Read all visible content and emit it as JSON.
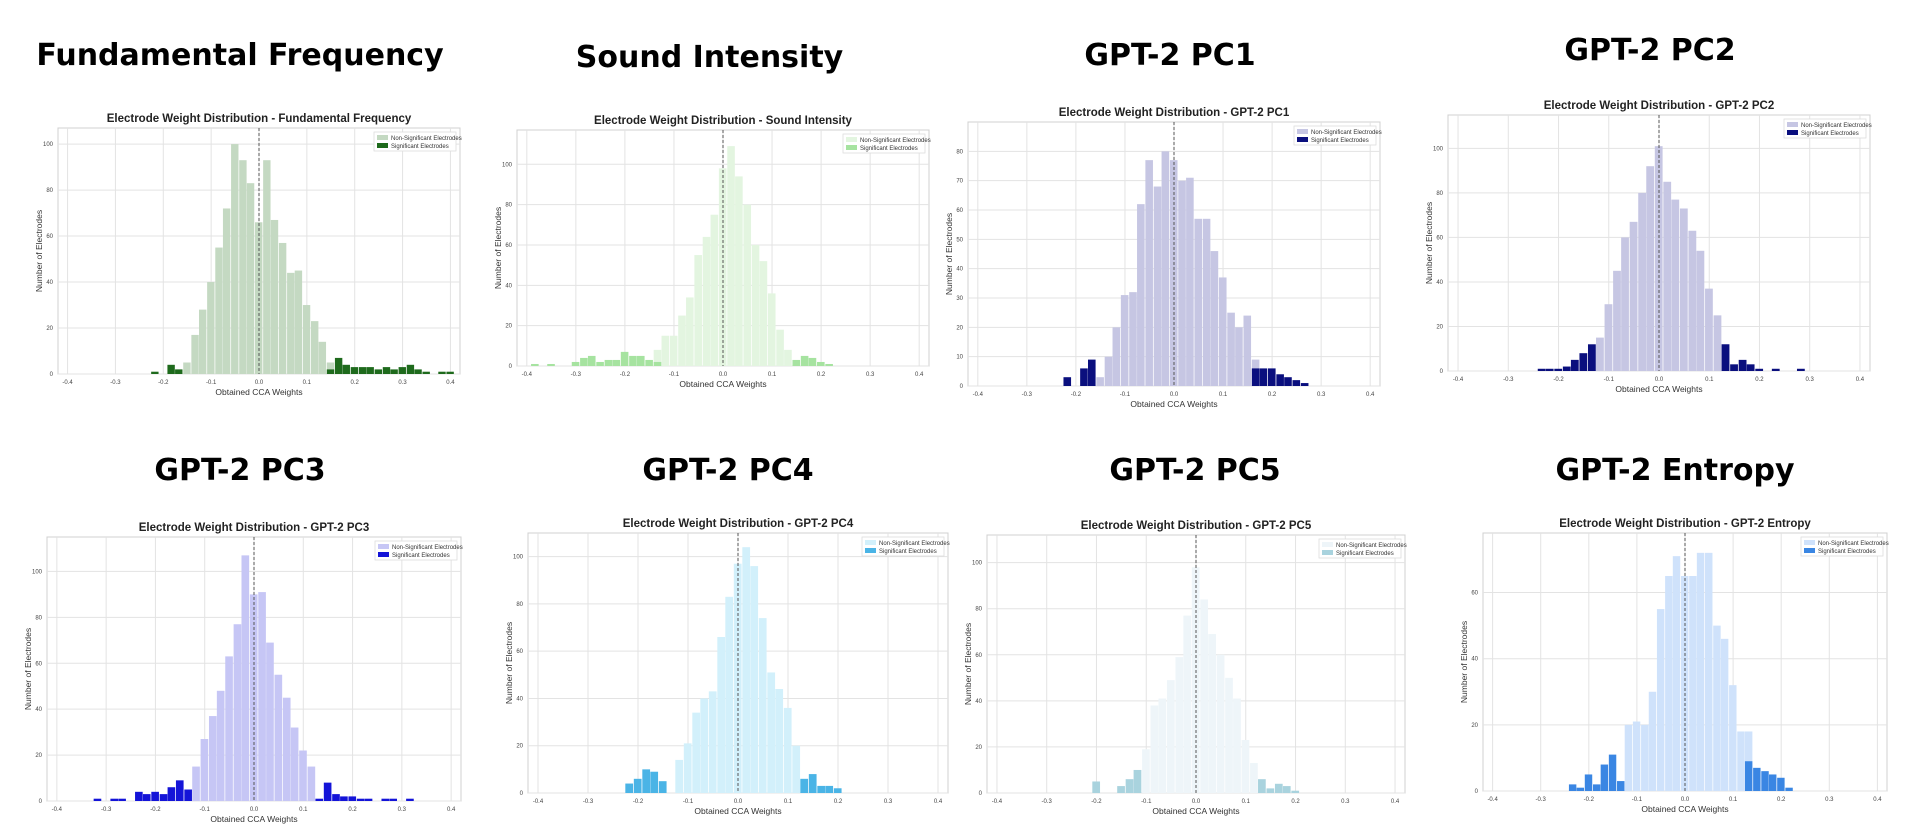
{
  "panels": [
    {
      "heading": "Fundamental Frequency",
      "nonsig_color": "#c4d9c2",
      "sig_color": "#1e6a1c"
    },
    {
      "heading": "Sound Intensity",
      "nonsig_color": "#e3f5e0",
      "sig_color": "#a6e3a0"
    },
    {
      "heading": "GPT-2 PC1",
      "nonsig_color": "#c6c6e3",
      "sig_color": "#0a0f7e"
    },
    {
      "heading": "GPT-2 PC2",
      "nonsig_color": "#c6c6e3",
      "sig_color": "#0a0f7e"
    },
    {
      "heading": "GPT-2 PC3",
      "nonsig_color": "#c6c6f5",
      "sig_color": "#1414d8"
    },
    {
      "heading": "GPT-2 PC4",
      "nonsig_color": "#d2f0fb",
      "sig_color": "#4ab4e6"
    },
    {
      "heading": "GPT-2 PC5",
      "nonsig_color": "#eef5f9",
      "sig_color": "#a9d3de"
    },
    {
      "heading": "GPT-2 Entropy",
      "nonsig_color": "#cfe2fb",
      "sig_color": "#3a86e3"
    }
  ],
  "legend": {
    "nonsig": "Non-Significant Electrodes",
    "sig": "Significant Electrodes"
  },
  "chart_data": [
    {
      "type": "bar",
      "title": "Electrode Weight Distribution - Fundamental Frequency",
      "xlabel": "Obtained CCA Weights",
      "ylabel": "Number of Electrodes",
      "xlim": [
        -0.42,
        0.42
      ],
      "ylim": [
        0,
        107
      ],
      "xticks": [
        -0.4,
        -0.3,
        -0.2,
        -0.1,
        0.0,
        0.1,
        0.2,
        0.3,
        0.4
      ],
      "yticks": [
        0,
        20,
        40,
        60,
        80,
        100
      ],
      "bin_width": 0.0167,
      "nonsig": [
        [
          -0.167,
          2
        ],
        [
          -0.15,
          5
        ],
        [
          -0.133,
          17
        ],
        [
          -0.117,
          28
        ],
        [
          -0.1,
          40
        ],
        [
          -0.083,
          55
        ],
        [
          -0.067,
          72
        ],
        [
          -0.05,
          100
        ],
        [
          -0.033,
          93
        ],
        [
          -0.017,
          83
        ],
        [
          0.0,
          66
        ],
        [
          0.017,
          93
        ],
        [
          0.033,
          67
        ],
        [
          0.05,
          57
        ],
        [
          0.067,
          44
        ],
        [
          0.083,
          45
        ],
        [
          0.1,
          30
        ],
        [
          0.117,
          23
        ],
        [
          0.133,
          14
        ],
        [
          0.15,
          5
        ]
      ],
      "sig": [
        [
          -0.217,
          1
        ],
        [
          -0.183,
          4
        ],
        [
          -0.167,
          2
        ],
        [
          0.15,
          2
        ],
        [
          0.167,
          7
        ],
        [
          0.183,
          4
        ],
        [
          0.2,
          3
        ],
        [
          0.217,
          3
        ],
        [
          0.233,
          3
        ],
        [
          0.25,
          2
        ],
        [
          0.267,
          3
        ],
        [
          0.283,
          2
        ],
        [
          0.3,
          3
        ],
        [
          0.317,
          4
        ],
        [
          0.333,
          2
        ],
        [
          0.35,
          1
        ],
        [
          0.383,
          1
        ],
        [
          0.4,
          1
        ]
      ]
    },
    {
      "type": "bar",
      "title": "Electrode Weight Distribution - Sound Intensity",
      "xlabel": "Obtained CCA Weights",
      "ylabel": "Number of Electrodes",
      "xlim": [
        -0.42,
        0.42
      ],
      "ylim": [
        0,
        117
      ],
      "xticks": [
        -0.4,
        -0.3,
        -0.2,
        -0.1,
        0.0,
        0.1,
        0.2,
        0.3,
        0.4
      ],
      "yticks": [
        0,
        20,
        40,
        60,
        80,
        100
      ],
      "bin_width": 0.0167,
      "nonsig": [
        [
          -0.133,
          8
        ],
        [
          -0.117,
          15
        ],
        [
          -0.1,
          15
        ],
        [
          -0.083,
          25
        ],
        [
          -0.067,
          34
        ],
        [
          -0.05,
          55
        ],
        [
          -0.033,
          64
        ],
        [
          -0.017,
          75
        ],
        [
          0.0,
          98
        ],
        [
          0.017,
          109
        ],
        [
          0.033,
          94
        ],
        [
          0.05,
          80
        ],
        [
          0.067,
          60
        ],
        [
          0.083,
          52
        ],
        [
          0.1,
          36
        ],
        [
          0.117,
          18
        ],
        [
          0.133,
          8
        ]
      ],
      "sig": [
        [
          -0.383,
          1
        ],
        [
          -0.35,
          1
        ],
        [
          -0.3,
          2
        ],
        [
          -0.283,
          4
        ],
        [
          -0.267,
          5
        ],
        [
          -0.25,
          2
        ],
        [
          -0.233,
          3
        ],
        [
          -0.217,
          3
        ],
        [
          -0.2,
          7
        ],
        [
          -0.183,
          5
        ],
        [
          -0.167,
          5
        ],
        [
          -0.15,
          3
        ],
        [
          -0.133,
          2
        ],
        [
          0.15,
          3
        ],
        [
          0.167,
          5
        ],
        [
          0.183,
          4
        ],
        [
          0.2,
          2
        ],
        [
          0.217,
          1
        ]
      ]
    },
    {
      "type": "bar",
      "title": "Electrode Weight Distribution - GPT-2 PC1",
      "xlabel": "Obtained CCA Weights",
      "ylabel": "Number of Electrodes",
      "xlim": [
        -0.42,
        0.42
      ],
      "ylim": [
        0,
        90
      ],
      "xticks": [
        -0.4,
        -0.3,
        -0.2,
        -0.1,
        0.0,
        0.1,
        0.2,
        0.3,
        0.4
      ],
      "yticks": [
        0,
        10,
        20,
        30,
        40,
        50,
        60,
        70,
        80
      ],
      "bin_width": 0.0167,
      "nonsig": [
        [
          -0.15,
          3
        ],
        [
          -0.133,
          10
        ],
        [
          -0.117,
          20
        ],
        [
          -0.1,
          31
        ],
        [
          -0.083,
          32
        ],
        [
          -0.067,
          62
        ],
        [
          -0.05,
          77
        ],
        [
          -0.033,
          68
        ],
        [
          -0.017,
          80
        ],
        [
          0.0,
          77
        ],
        [
          0.017,
          70
        ],
        [
          0.033,
          71
        ],
        [
          0.05,
          57
        ],
        [
          0.067,
          57
        ],
        [
          0.083,
          46
        ],
        [
          0.1,
          37
        ],
        [
          0.117,
          25
        ],
        [
          0.133,
          20
        ],
        [
          0.15,
          24
        ],
        [
          0.167,
          9
        ]
      ],
      "sig": [
        [
          -0.217,
          3
        ],
        [
          -0.183,
          6
        ],
        [
          -0.167,
          9
        ],
        [
          0.167,
          6
        ],
        [
          0.183,
          6
        ],
        [
          0.2,
          6
        ],
        [
          0.217,
          4
        ],
        [
          0.233,
          3
        ],
        [
          0.25,
          2
        ],
        [
          0.267,
          1
        ]
      ]
    },
    {
      "type": "bar",
      "title": "Electrode Weight Distribution - GPT-2 PC2",
      "xlabel": "Obtained CCA Weights",
      "ylabel": "Number of Electrodes",
      "xlim": [
        -0.42,
        0.42
      ],
      "ylim": [
        0,
        115
      ],
      "xticks": [
        -0.4,
        -0.3,
        -0.2,
        -0.1,
        0.0,
        0.1,
        0.2,
        0.3,
        0.4
      ],
      "yticks": [
        0,
        20,
        40,
        60,
        80,
        100
      ],
      "bin_width": 0.0167,
      "nonsig": [
        [
          -0.117,
          15
        ],
        [
          -0.1,
          30
        ],
        [
          -0.083,
          45
        ],
        [
          -0.067,
          60
        ],
        [
          -0.05,
          67
        ],
        [
          -0.033,
          80
        ],
        [
          -0.017,
          92
        ],
        [
          0.0,
          101
        ],
        [
          0.017,
          85
        ],
        [
          0.033,
          77
        ],
        [
          0.05,
          73
        ],
        [
          0.067,
          63
        ],
        [
          0.083,
          54
        ],
        [
          0.1,
          37
        ],
        [
          0.117,
          25
        ],
        [
          0.133,
          12
        ]
      ],
      "sig": [
        [
          -0.233,
          1
        ],
        [
          -0.217,
          1
        ],
        [
          -0.2,
          1
        ],
        [
          -0.183,
          2
        ],
        [
          -0.167,
          5
        ],
        [
          -0.15,
          8
        ],
        [
          -0.133,
          12
        ],
        [
          0.133,
          12
        ],
        [
          0.15,
          3
        ],
        [
          0.167,
          5
        ],
        [
          0.183,
          3
        ],
        [
          0.2,
          1
        ],
        [
          0.233,
          1
        ],
        [
          0.283,
          1
        ]
      ]
    },
    {
      "type": "bar",
      "title": "Electrode Weight Distribution - GPT-2 PC3",
      "xlabel": "Obtained CCA Weights",
      "ylabel": "Number of Electrodes",
      "xlim": [
        -0.42,
        0.42
      ],
      "ylim": [
        0,
        115
      ],
      "xticks": [
        -0.4,
        -0.3,
        -0.2,
        -0.1,
        0.0,
        0.1,
        0.2,
        0.3,
        0.4
      ],
      "yticks": [
        0,
        20,
        40,
        60,
        80,
        100
      ],
      "bin_width": 0.0167,
      "nonsig": [
        [
          -0.117,
          15
        ],
        [
          -0.1,
          27
        ],
        [
          -0.083,
          37
        ],
        [
          -0.067,
          48
        ],
        [
          -0.05,
          63
        ],
        [
          -0.033,
          77
        ],
        [
          -0.017,
          107
        ],
        [
          0.0,
          90
        ],
        [
          0.017,
          91
        ],
        [
          0.033,
          69
        ],
        [
          0.05,
          55
        ],
        [
          0.067,
          45
        ],
        [
          0.083,
          32
        ],
        [
          0.1,
          22
        ],
        [
          0.117,
          15
        ]
      ],
      "sig": [
        [
          -0.317,
          1
        ],
        [
          -0.283,
          1
        ],
        [
          -0.267,
          1
        ],
        [
          -0.233,
          4
        ],
        [
          -0.217,
          3
        ],
        [
          -0.2,
          4
        ],
        [
          -0.183,
          3
        ],
        [
          -0.167,
          6
        ],
        [
          -0.15,
          9
        ],
        [
          -0.133,
          5
        ],
        [
          0.133,
          1
        ],
        [
          0.15,
          8
        ],
        [
          0.167,
          3
        ],
        [
          0.183,
          2
        ],
        [
          0.2,
          2
        ],
        [
          0.217,
          1
        ],
        [
          0.233,
          1
        ],
        [
          0.267,
          1
        ],
        [
          0.283,
          1
        ],
        [
          0.317,
          1
        ]
      ]
    },
    {
      "type": "bar",
      "title": "Electrode Weight Distribution - GPT-2 PC4",
      "xlabel": "Obtained CCA Weights",
      "ylabel": "Number of Electrodes",
      "xlim": [
        -0.42,
        0.42
      ],
      "ylim": [
        0,
        110
      ],
      "xticks": [
        -0.4,
        -0.3,
        -0.2,
        -0.1,
        0.0,
        0.1,
        0.2,
        0.3,
        0.4
      ],
      "yticks": [
        0,
        20,
        40,
        60,
        80,
        100
      ],
      "bin_width": 0.0167,
      "nonsig": [
        [
          -0.117,
          14
        ],
        [
          -0.1,
          21
        ],
        [
          -0.083,
          34
        ],
        [
          -0.067,
          40
        ],
        [
          -0.05,
          43
        ],
        [
          -0.033,
          66
        ],
        [
          -0.017,
          83
        ],
        [
          0.0,
          97
        ],
        [
          0.017,
          104
        ],
        [
          0.033,
          96
        ],
        [
          0.05,
          74
        ],
        [
          0.067,
          51
        ],
        [
          0.083,
          44
        ],
        [
          0.1,
          36
        ],
        [
          0.117,
          20
        ]
      ],
      "sig": [
        [
          -0.217,
          4
        ],
        [
          -0.2,
          6
        ],
        [
          -0.183,
          10
        ],
        [
          -0.167,
          9
        ],
        [
          -0.15,
          5
        ],
        [
          0.133,
          6
        ],
        [
          0.15,
          8
        ],
        [
          0.167,
          3
        ],
        [
          0.183,
          3
        ],
        [
          0.2,
          2
        ]
      ]
    },
    {
      "type": "bar",
      "title": "Electrode Weight Distribution - GPT-2 PC5",
      "xlabel": "Obtained CCA Weights",
      "ylabel": "Number of Electrodes",
      "xlim": [
        -0.42,
        0.42
      ],
      "ylim": [
        0,
        112
      ],
      "xticks": [
        -0.4,
        -0.3,
        -0.2,
        -0.1,
        0.0,
        0.1,
        0.2,
        0.3,
        0.4
      ],
      "yticks": [
        0,
        20,
        40,
        60,
        80,
        100
      ],
      "bin_width": 0.0167,
      "nonsig": [
        [
          -0.117,
          10
        ],
        [
          -0.1,
          19
        ],
        [
          -0.083,
          38
        ],
        [
          -0.067,
          41
        ],
        [
          -0.05,
          49
        ],
        [
          -0.033,
          59
        ],
        [
          -0.017,
          77
        ],
        [
          0.0,
          98
        ],
        [
          0.017,
          84
        ],
        [
          0.033,
          69
        ],
        [
          0.05,
          60
        ],
        [
          0.067,
          50
        ],
        [
          0.083,
          41
        ],
        [
          0.1,
          23
        ],
        [
          0.117,
          13
        ]
      ],
      "sig": [
        [
          -0.2,
          5
        ],
        [
          -0.15,
          3
        ],
        [
          -0.133,
          6
        ],
        [
          -0.117,
          10
        ],
        [
          0.133,
          6
        ],
        [
          0.15,
          2
        ],
        [
          0.167,
          4
        ],
        [
          0.183,
          3
        ],
        [
          0.2,
          1
        ]
      ]
    },
    {
      "type": "bar",
      "title": "Electrode Weight Distribution - GPT-2 Entropy",
      "xlabel": "Obtained CCA Weights",
      "ylabel": "Number of Electrodes",
      "xlim": [
        -0.42,
        0.42
      ],
      "ylim": [
        0,
        78
      ],
      "xticks": [
        -0.4,
        -0.3,
        -0.2,
        -0.1,
        0.0,
        0.1,
        0.2,
        0.3,
        0.4
      ],
      "yticks": [
        0,
        20,
        40,
        60
      ],
      "bin_width": 0.0167,
      "nonsig": [
        [
          -0.117,
          20
        ],
        [
          -0.1,
          21
        ],
        [
          -0.083,
          20
        ],
        [
          -0.067,
          30
        ],
        [
          -0.05,
          55
        ],
        [
          -0.033,
          65
        ],
        [
          -0.017,
          71
        ],
        [
          0.0,
          65
        ],
        [
          0.017,
          65
        ],
        [
          0.033,
          72
        ],
        [
          0.05,
          72
        ],
        [
          0.067,
          50
        ],
        [
          0.083,
          46
        ],
        [
          0.1,
          32
        ],
        [
          0.117,
          18
        ],
        [
          0.133,
          18
        ]
      ],
      "sig": [
        [
          -0.233,
          2
        ],
        [
          -0.217,
          1
        ],
        [
          -0.2,
          5
        ],
        [
          -0.183,
          2
        ],
        [
          -0.167,
          8
        ],
        [
          -0.15,
          11
        ],
        [
          -0.133,
          3
        ],
        [
          0.133,
          9
        ],
        [
          0.15,
          7
        ],
        [
          0.167,
          6
        ],
        [
          0.183,
          5
        ],
        [
          0.2,
          4
        ],
        [
          0.217,
          1
        ]
      ]
    }
  ]
}
